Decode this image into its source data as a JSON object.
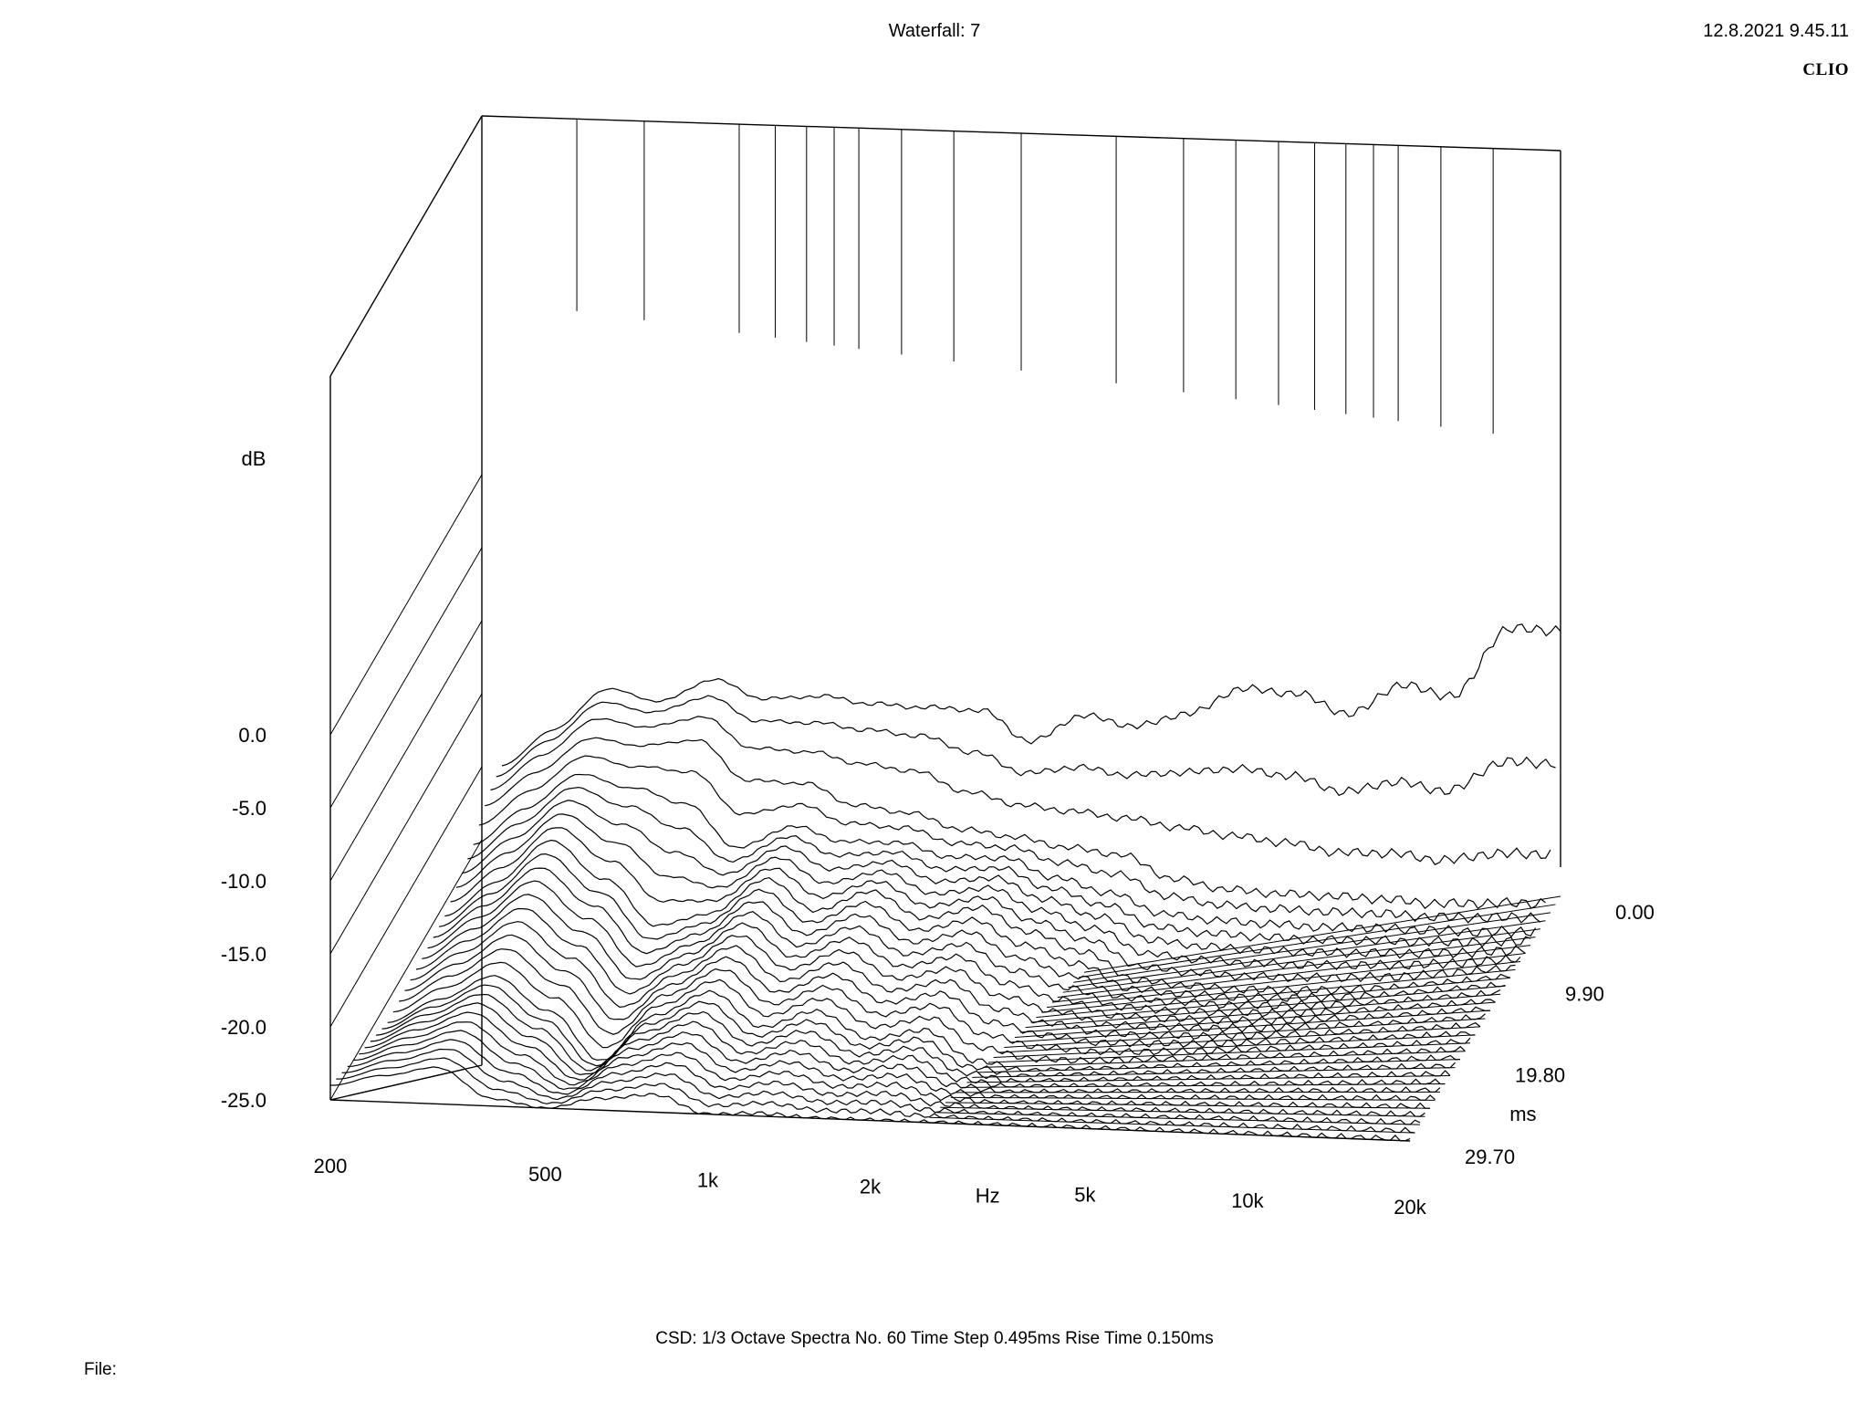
{
  "header": {
    "title": "Waterfall: 7",
    "timestamp": "12.8.2021 9.45.11",
    "brand": "CLIO"
  },
  "footer": {
    "settings": "CSD:   1/3 Octave   Spectra No. 60   Time Step 0.495ms   Rise Time 0.150ms",
    "file_label": "File:"
  },
  "chart_data": {
    "type": "line",
    "subtype": "waterfall-3d",
    "title": "Waterfall: 7",
    "xlabel": "Hz",
    "ylabel": "dB",
    "zlabel": "ms",
    "xscale": "log",
    "xlim": [
      200,
      20000
    ],
    "ylim": [
      -25,
      0
    ],
    "zlim": [
      0,
      29.7
    ],
    "x_ticks": [
      "200",
      "500",
      "1k",
      "2k",
      "5k",
      "10k",
      "20k"
    ],
    "x_tick_values": [
      200,
      500,
      1000,
      2000,
      5000,
      10000,
      20000
    ],
    "y_ticks": [
      "0.0",
      "-5.0",
      "-10.0",
      "-15.0",
      "-20.0",
      "-25.0"
    ],
    "y_tick_values": [
      0,
      -5,
      -10,
      -15,
      -20,
      -25
    ],
    "z_ticks": [
      "0.00",
      "9.90",
      "19.80",
      "29.70"
    ],
    "z_tick_values": [
      0,
      9.9,
      19.8,
      29.7
    ],
    "grid": true,
    "spectra_count": 60,
    "time_step_ms": 0.495,
    "series": [
      {
        "name": "",
        "time_ms": 0.0,
        "x": [
          200,
          250,
          315,
          400,
          500,
          630,
          800,
          1000,
          1250,
          1600,
          2000,
          2500,
          3150,
          4000,
          5000,
          6300,
          8000,
          10000,
          12500,
          16000,
          20000
        ],
        "y": [
          -4.5,
          -2.6,
          -0.4,
          -1.8,
          -0.9,
          -2.8,
          -3.2,
          -4.3,
          -5.1,
          -5.9,
          -8.6,
          -7.4,
          -8.7,
          -8.4,
          -7.3,
          -8.2,
          -10.2,
          -8.8,
          -10.1,
          -6.1,
          -6.8
        ]
      },
      {
        "name": "",
        "time_ms": 1.485,
        "x": [
          200,
          250,
          315,
          400,
          500,
          630,
          800,
          1000,
          1250,
          1600,
          2000,
          2500,
          3150,
          4000,
          5000,
          6300,
          8000,
          10000,
          12500,
          16000,
          20000
        ],
        "y": [
          -5.5,
          -3.6,
          -1.6,
          -2.7,
          -2.4,
          -4.8,
          -5.6,
          -6.6,
          -7.6,
          -9.8,
          -11.4,
          -12.2,
          -13.2,
          -13.9,
          -14.9,
          -16.0,
          -17.5,
          -18.0,
          -19.1,
          -19.0,
          -19.6
        ]
      },
      {
        "name": "",
        "time_ms": 2.97,
        "x": [
          200,
          250,
          315,
          400,
          500,
          630,
          800,
          1000,
          1250,
          1600,
          2000,
          2500,
          3150,
          4000,
          5000,
          6300,
          8000,
          10000,
          12500,
          16000,
          20000
        ],
        "y": [
          -7.0,
          -5.2,
          -3.4,
          -4.4,
          -4.5,
          -7.8,
          -8.5,
          -10.5,
          -11.5,
          -13.2,
          -14.2,
          -15.4,
          -16.4,
          -18.6,
          -19.8,
          -20.6,
          -21.3,
          -22.0,
          -22.8,
          -23.3,
          -23.8
        ]
      },
      {
        "name": "",
        "time_ms": 4.95,
        "x": [
          200,
          250,
          315,
          400,
          500,
          630,
          800,
          1000,
          1250,
          1600,
          2000,
          2500,
          3150,
          4000,
          5000,
          6300,
          8000,
          10000,
          12500,
          16000,
          20000
        ],
        "y": [
          -9.5,
          -7.5,
          -5.6,
          -7.0,
          -8.5,
          -12.0,
          -11.0,
          -12.5,
          -13.0,
          -14.5,
          -15.0,
          -16.8,
          -18.3,
          -20.2,
          -21.1,
          -21.8,
          -22.5,
          -23.0,
          -23.6,
          -24.2,
          -24.6
        ]
      },
      {
        "name": "",
        "time_ms": 9.9,
        "x": [
          200,
          250,
          315,
          400,
          500,
          630,
          800,
          1000,
          1250,
          1600,
          2000,
          2500,
          3150,
          4000,
          5000,
          6300,
          8000,
          10000,
          12500,
          16000,
          20000
        ],
        "y": [
          -14.0,
          -12.0,
          -9.5,
          -12.5,
          -16.0,
          -15.5,
          -13.5,
          -16.0,
          -15.0,
          -17.2,
          -16.8,
          -18.8,
          -20.5,
          -22.8,
          -23.5,
          -24.1,
          -24.5,
          -24.8,
          -25.0,
          -25.0,
          -25.0
        ]
      },
      {
        "name": "",
        "time_ms": 19.8,
        "x": [
          200,
          250,
          315,
          400,
          500,
          630,
          800,
          1000,
          1250,
          1600,
          2000,
          2500,
          3150,
          4000,
          5000,
          6300,
          8000,
          10000,
          12500,
          16000,
          20000
        ],
        "y": [
          -20.5,
          -19.0,
          -17.5,
          -20.0,
          -23.5,
          -20.5,
          -19.0,
          -21.5,
          -20.5,
          -22.5,
          -22.0,
          -24.2,
          -25.0,
          -25.0,
          -25.0,
          -25.0,
          -25.0,
          -25.0,
          -25.0,
          -25.0,
          -25.0
        ]
      },
      {
        "name": "",
        "time_ms": 29.7,
        "x": [
          200,
          250,
          315,
          400,
          500,
          630,
          800,
          1000,
          1250,
          1600,
          2000,
          2500,
          3150,
          4000,
          5000,
          6300,
          8000,
          10000,
          12500,
          16000,
          20000
        ],
        "y": [
          -24.0,
          -23.2,
          -22.5,
          -24.5,
          -25.0,
          -24.2,
          -23.8,
          -25.0,
          -24.8,
          -25.0,
          -25.0,
          -25.0,
          -25.0,
          -25.0,
          -25.0,
          -25.0,
          -25.0,
          -25.0,
          -25.0,
          -25.0,
          -25.0
        ]
      }
    ]
  }
}
